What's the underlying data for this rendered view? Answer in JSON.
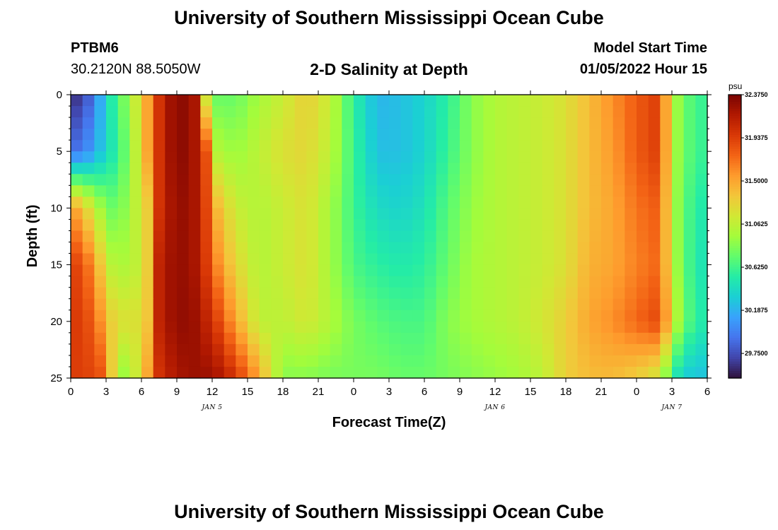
{
  "header": {
    "title": "University of Southern Mississippi Ocean Cube",
    "station": "PTBM6",
    "coordinates": "30.2120N  88.5050W",
    "subtitle": "2-D Salinity at Depth",
    "model_label": "Model Start Time",
    "model_time": "01/05/2022 Hour 15"
  },
  "footer": {
    "title": "University of Southern Mississippi Ocean Cube"
  },
  "chart_data": {
    "type": "heatmap",
    "xlabel": "Forecast Time(Z)",
    "ylabel": "Depth (ft)",
    "x_tick_labels": [
      "0",
      "3",
      "6",
      "9",
      "12",
      "15",
      "18",
      "21",
      "0",
      "3",
      "6",
      "9",
      "12",
      "15",
      "18",
      "21",
      "0",
      "3",
      "6"
    ],
    "x_range_hours": [
      0,
      54
    ],
    "day_labels": [
      {
        "label": "JAN 5",
        "hour": 12
      },
      {
        "label": "JAN 6",
        "hour": 36
      },
      {
        "label": "JAN 7",
        "hour": 51
      }
    ],
    "y_tick_labels": [
      "0",
      "5",
      "10",
      "15",
      "20",
      "25"
    ],
    "y_range_ft": [
      0,
      25
    ],
    "colorbar": {
      "unit": "psu",
      "tick_labels": [
        "32.3750",
        "31.9375",
        "31.5000",
        "31.0625",
        "30.6250",
        "30.1875",
        "29.7500"
      ],
      "range": [
        29.5,
        32.375
      ],
      "colors": [
        "#30123b",
        "#4145ab",
        "#4675ed",
        "#39a2fc",
        "#1bcfd4",
        "#24eca6",
        "#61fc6c",
        "#a4fc3b",
        "#d1e834",
        "#f3c63a",
        "#fe9b2d",
        "#f36315",
        "#d93806",
        "#b11901",
        "#7a0402"
      ]
    },
    "salinity_grid": {
      "hours": [
        0,
        2,
        3,
        4,
        5.5,
        6.5,
        7.5,
        9,
        10.5,
        11.5,
        12.5,
        14,
        16,
        18,
        20,
        22,
        24,
        26,
        28,
        30,
        32,
        34,
        36,
        38,
        40,
        42,
        44,
        46,
        48,
        50,
        51,
        52,
        54
      ],
      "depths_ft": [
        0,
        5,
        10,
        15,
        20,
        25
      ],
      "values": [
        [
          29.55,
          29.9,
          30.4,
          30.65,
          31.1,
          31.5,
          32.0,
          32.35,
          32.2,
          31.1,
          30.75,
          30.75,
          30.95,
          31.1,
          31.3,
          31.1,
          30.55,
          30.2,
          30.25,
          30.35,
          30.55,
          30.85,
          31.0,
          31.05,
          31.1,
          31.2,
          31.4,
          31.6,
          31.8,
          31.95,
          31.05,
          30.75,
          30.55
        ],
        [
          29.85,
          30.1,
          30.4,
          30.55,
          31.05,
          31.5,
          32.0,
          32.35,
          32.2,
          31.85,
          31.0,
          30.9,
          31.05,
          31.2,
          31.25,
          31.05,
          30.6,
          30.25,
          30.25,
          30.35,
          30.6,
          30.85,
          31.0,
          31.05,
          31.1,
          31.2,
          31.4,
          31.55,
          31.8,
          31.95,
          31.05,
          30.75,
          30.55
        ],
        [
          31.6,
          31.1,
          30.8,
          30.75,
          31.05,
          31.3,
          32.0,
          32.3,
          32.2,
          31.9,
          31.4,
          31.1,
          31.0,
          31.1,
          31.2,
          30.95,
          30.6,
          30.4,
          30.35,
          30.45,
          30.7,
          30.9,
          31.0,
          31.05,
          31.1,
          31.2,
          31.4,
          31.5,
          31.7,
          31.8,
          31.05,
          30.7,
          30.45
        ],
        [
          32.0,
          31.6,
          31.1,
          30.95,
          31.05,
          31.3,
          32.1,
          32.3,
          32.2,
          31.95,
          31.6,
          31.25,
          31.0,
          31.1,
          31.2,
          30.95,
          30.65,
          30.55,
          30.5,
          30.55,
          30.75,
          30.95,
          31.0,
          31.05,
          31.1,
          31.2,
          31.45,
          31.5,
          31.65,
          31.75,
          31.1,
          30.7,
          30.4
        ],
        [
          32.0,
          31.8,
          31.4,
          31.2,
          31.2,
          31.35,
          32.1,
          32.3,
          32.25,
          32.1,
          31.9,
          31.5,
          31.05,
          31.05,
          31.15,
          31.0,
          30.8,
          30.7,
          30.65,
          30.65,
          30.85,
          30.95,
          31.0,
          31.05,
          31.15,
          31.3,
          31.5,
          31.6,
          31.75,
          31.9,
          31.2,
          30.75,
          30.45
        ],
        [
          31.95,
          31.9,
          31.8,
          30.8,
          31.1,
          31.5,
          32.0,
          32.2,
          32.25,
          32.25,
          32.2,
          32.0,
          31.5,
          30.85,
          30.85,
          30.8,
          30.8,
          30.8,
          30.75,
          30.75,
          30.8,
          30.85,
          30.9,
          30.95,
          31.05,
          31.3,
          31.4,
          31.4,
          31.3,
          31.1,
          30.55,
          30.3,
          30.25
        ]
      ]
    }
  }
}
